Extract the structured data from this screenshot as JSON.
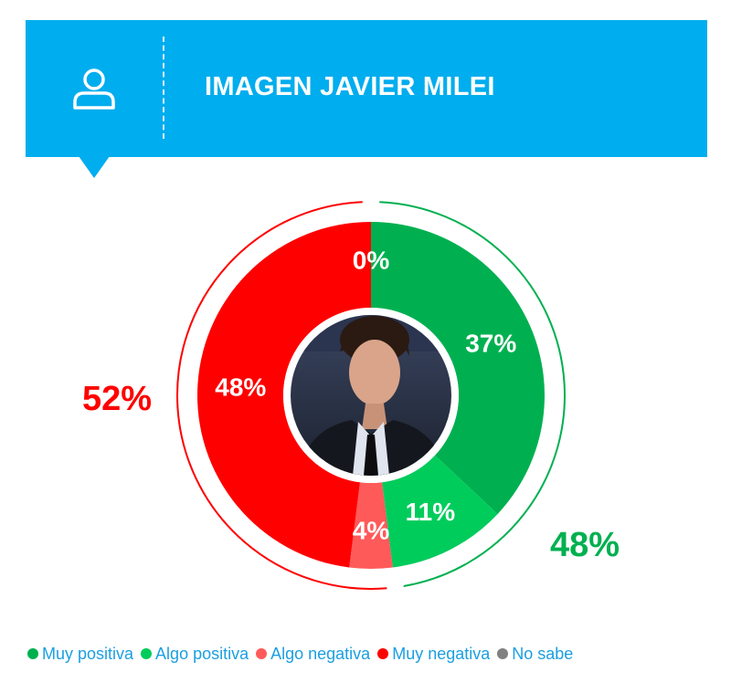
{
  "header": {
    "title": "IMAGEN JAVIER MILEI",
    "icon": "user-icon",
    "color": "#00adee"
  },
  "chart_data": {
    "type": "pie",
    "style": "donut",
    "title": "IMAGEN JAVIER MILEI",
    "series": [
      {
        "name": "Muy positiva",
        "value": 37,
        "label": "37%",
        "color": "#00b050"
      },
      {
        "name": "Algo positiva",
        "value": 11,
        "label": "11%",
        "color": "#00cc5c"
      },
      {
        "name": "Algo negativa",
        "value": 4,
        "label": "4%",
        "color": "#ff5a5a"
      },
      {
        "name": "Muy negativa",
        "value": 48,
        "label": "48%",
        "color": "#ff0000"
      },
      {
        "name": "No sabe",
        "value": 0,
        "label": "0%",
        "color": "#808080"
      }
    ],
    "totals": [
      {
        "name": "negative",
        "value": 52,
        "label": "52%",
        "color": "#ff0000"
      },
      {
        "name": "positive",
        "value": 48,
        "label": "48%",
        "color": "#00b050"
      }
    ],
    "center_image": "portrait-photo",
    "legend_position": "bottom"
  }
}
